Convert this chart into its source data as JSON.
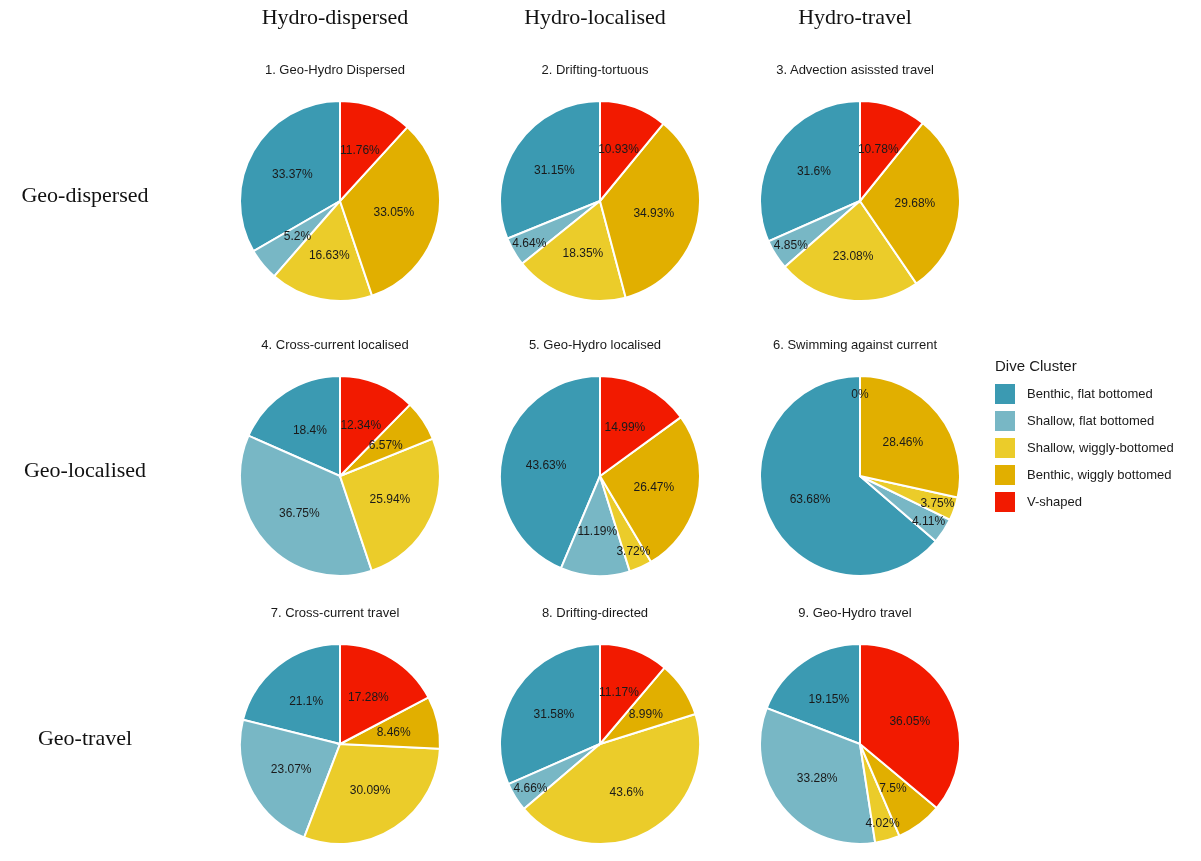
{
  "chart_data": [
    {
      "type": "pie",
      "title": "1. Geo-Hydro Dispersed",
      "annotations": [
        "Hydro-dispersed",
        "Geo-dispersed"
      ],
      "categories": [
        null,
        null,
        null,
        null,
        null
      ],
      "values": [
        33.37,
        5.2,
        16.63,
        33.05,
        11.76
      ],
      "value_labels": [
        "33.37%",
        "5.2%",
        "16.63%",
        "33.05%",
        "11.76%"
      ],
      "colors": [
        "#3b9ab2",
        "#78b7c5",
        "#ebcc2a",
        "#e1af00",
        "#f21a00"
      ]
    },
    {
      "type": "pie",
      "title": "2. Drifting-tortuous",
      "annotations": [
        "Hydro-localised"
      ],
      "categories": [
        null,
        null,
        null,
        null,
        null
      ],
      "values": [
        31.15,
        4.64,
        18.35,
        34.93,
        10.93
      ],
      "value_labels": [
        "31.15%",
        "4.64%",
        "18.35%",
        "34.93%",
        "10.93%"
      ],
      "colors": [
        "#3b9ab2",
        "#78b7c5",
        "#ebcc2a",
        "#e1af00",
        "#f21a00"
      ]
    },
    {
      "type": "pie",
      "title": "3. Advection asissted travel",
      "annotations": [
        "Hydro-travel"
      ],
      "categories": [
        null,
        null,
        null,
        null,
        null
      ],
      "values": [
        31.6,
        4.85,
        23.08,
        29.68,
        10.78
      ],
      "value_labels": [
        "31.6%",
        "4.85%",
        "23.08%",
        "29.68%",
        "10.78%"
      ],
      "colors": [
        "#3b9ab2",
        "#78b7c5",
        "#ebcc2a",
        "#e1af00",
        "#f21a00"
      ]
    },
    {
      "type": "pie",
      "title": "4. Cross-current localised",
      "annotations": [
        "Geo-localised"
      ],
      "categories": [
        null,
        null,
        null,
        null,
        null
      ],
      "values": [
        18.4,
        36.75,
        25.94,
        6.57,
        12.34
      ],
      "value_labels": [
        "18.4%",
        "36.75%",
        "25.94%",
        "6.57%",
        "12.34%"
      ],
      "colors": [
        "#3b9ab2",
        "#78b7c5",
        "#ebcc2a",
        "#e1af00",
        "#f21a00"
      ]
    },
    {
      "type": "pie",
      "title": "5. Geo-Hydro localised",
      "categories": [
        null,
        null,
        null,
        null,
        null
      ],
      "values": [
        43.63,
        11.19,
        3.72,
        26.47,
        14.99
      ],
      "value_labels": [
        "43.63%",
        "11.19%",
        "3.72%",
        "26.47%",
        "14.99%"
      ],
      "colors": [
        "#3b9ab2",
        "#78b7c5",
        "#ebcc2a",
        "#e1af00",
        "#f21a00"
      ]
    },
    {
      "type": "pie",
      "title": "6. Swimming against current",
      "legend": "right",
      "legend_title": "Dive Cluster",
      "categories": [
        "Benthic, flat bottomed",
        "Shallow, flat bottomed",
        "Shallow, wiggly-bottomed",
        "Benthic, wiggly bottomed",
        "V-shaped"
      ],
      "values": [
        63.68,
        4.11,
        3.75,
        28.46,
        0
      ],
      "value_labels": [
        "63.68%",
        "4.11%",
        "3.75%",
        "28.46%",
        "0%"
      ],
      "colors": [
        "#3b9ab2",
        "#78b7c5",
        "#ebcc2a",
        "#e1af00",
        "#f21a00"
      ]
    },
    {
      "type": "pie",
      "title": "7. Cross-current travel",
      "annotations": [
        "Geo-travel"
      ],
      "categories": [
        null,
        null,
        null,
        null,
        null
      ],
      "values": [
        21.1,
        23.07,
        30.09,
        8.46,
        17.28
      ],
      "value_labels": [
        "21.1%",
        "23.07%",
        "30.09%",
        "8.46%",
        "17.28%"
      ],
      "colors": [
        "#3b9ab2",
        "#78b7c5",
        "#ebcc2a",
        "#e1af00",
        "#f21a00"
      ]
    },
    {
      "type": "pie",
      "title": "8. Drifting-directed",
      "categories": [
        null,
        null,
        null,
        null,
        null
      ],
      "values": [
        31.58,
        4.66,
        43.6,
        8.99,
        11.17
      ],
      "value_labels": [
        "31.58%",
        "4.66%",
        "43.6%",
        "8.99%",
        "11.17%"
      ],
      "colors": [
        "#3b9ab2",
        "#78b7c5",
        "#ebcc2a",
        "#e1af00",
        "#f21a00"
      ]
    },
    {
      "type": "pie",
      "title": "9. Geo-Hydro travel",
      "categories": [
        null,
        null,
        null,
        null,
        null
      ],
      "values": [
        19.15,
        33.28,
        4.02,
        7.5,
        36.05
      ],
      "value_labels": [
        "19.15%",
        "33.28%",
        "4.02%",
        "7.5%",
        "36.05%"
      ],
      "colors": [
        "#3b9ab2",
        "#78b7c5",
        "#ebcc2a",
        "#e1af00",
        "#f21a00"
      ]
    }
  ]
}
